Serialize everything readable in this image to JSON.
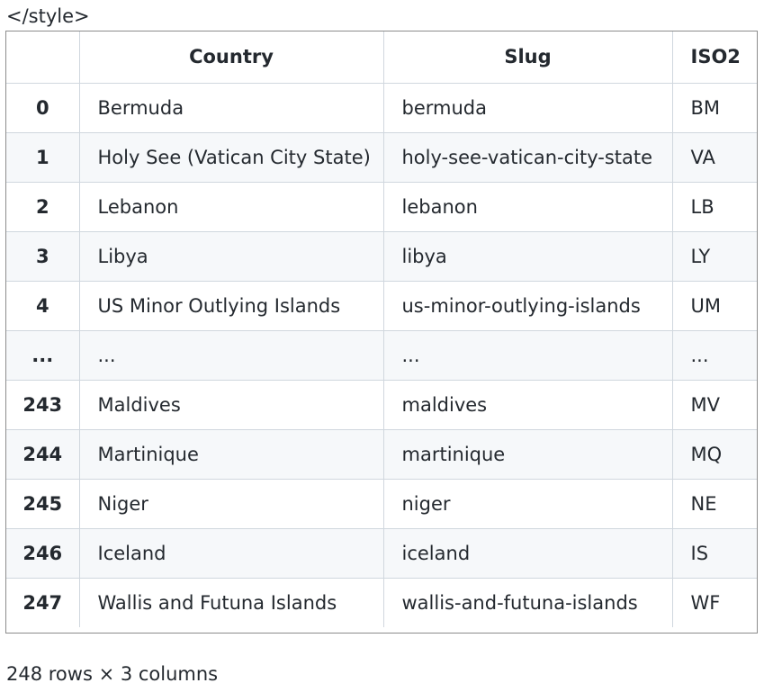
{
  "style_tag_text": "</style>",
  "table": {
    "columns": [
      "",
      "Country",
      "Slug",
      "ISO2"
    ],
    "rows": [
      {
        "index": "0",
        "country": "Bermuda",
        "slug": "bermuda",
        "iso2": "BM"
      },
      {
        "index": "1",
        "country": "Holy See (Vatican City State)",
        "slug": "holy-see-vatican-city-state",
        "iso2": "VA"
      },
      {
        "index": "2",
        "country": "Lebanon",
        "slug": "lebanon",
        "iso2": "LB"
      },
      {
        "index": "3",
        "country": "Libya",
        "slug": "libya",
        "iso2": "LY"
      },
      {
        "index": "4",
        "country": "US Minor Outlying Islands",
        "slug": "us-minor-outlying-islands",
        "iso2": "UM"
      },
      {
        "index": "...",
        "country": "...",
        "slug": "...",
        "iso2": "..."
      },
      {
        "index": "243",
        "country": "Maldives",
        "slug": "maldives",
        "iso2": "MV"
      },
      {
        "index": "244",
        "country": "Martinique",
        "slug": "martinique",
        "iso2": "MQ"
      },
      {
        "index": "245",
        "country": "Niger",
        "slug": "niger",
        "iso2": "NE"
      },
      {
        "index": "246",
        "country": "Iceland",
        "slug": "iceland",
        "iso2": "IS"
      },
      {
        "index": "247",
        "country": "Wallis and Futuna Islands",
        "slug": "wallis-and-futuna-islands",
        "iso2": "WF"
      }
    ]
  },
  "footer_text": "248 rows × 3 columns"
}
